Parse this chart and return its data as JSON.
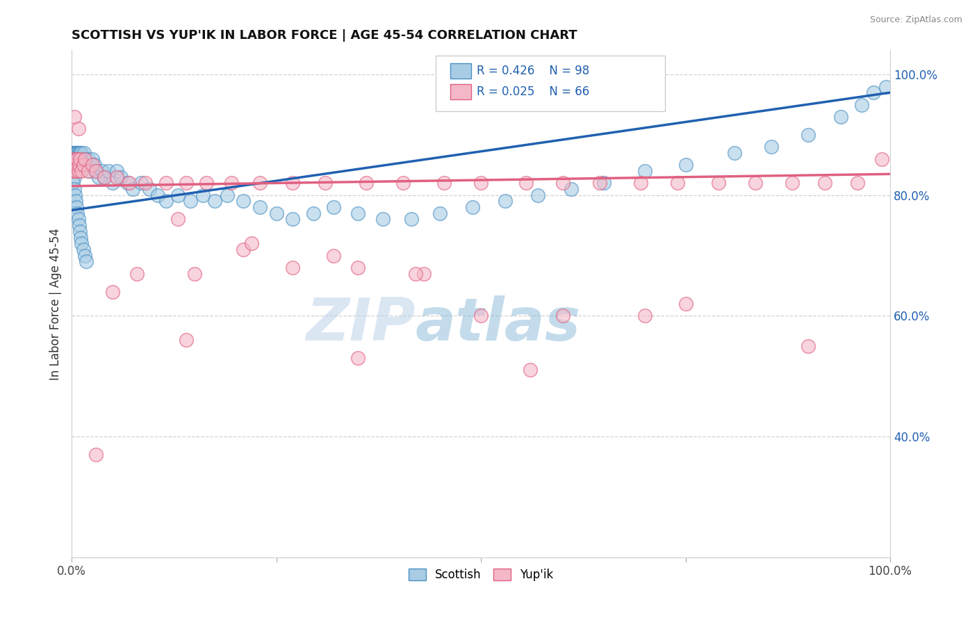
{
  "title": "SCOTTISH VS YUP'IK IN LABOR FORCE | AGE 45-54 CORRELATION CHART",
  "source": "Source: ZipAtlas.com",
  "ylabel": "In Labor Force | Age 45-54",
  "xlim": [
    0,
    1
  ],
  "ylim": [
    0.2,
    1.04
  ],
  "y_ticks_right": [
    0.4,
    0.6,
    0.8,
    1.0
  ],
  "y_tick_labels_right": [
    "40.0%",
    "60.0%",
    "80.0%",
    "100.0%"
  ],
  "watermark_zip": "ZIP",
  "watermark_atlas": "atlas",
  "legend_blue_label": "Scottish",
  "legend_pink_label": "Yup'ik",
  "blue_R": "R = 0.426",
  "blue_N": "N = 98",
  "pink_R": "R = 0.025",
  "pink_N": "N = 66",
  "blue_fill": "#a8cce4",
  "blue_edge": "#4a90c4",
  "pink_fill": "#f4b8c8",
  "pink_edge": "#e06080",
  "blue_line_color": "#2060b0",
  "pink_line_color": "#e06080",
  "background_color": "#ffffff",
  "grid_color": "#cccccc",
  "scottish_x": [
    0.001,
    0.001,
    0.001,
    0.002,
    0.002,
    0.002,
    0.002,
    0.003,
    0.003,
    0.003,
    0.003,
    0.003,
    0.004,
    0.004,
    0.004,
    0.004,
    0.005,
    0.005,
    0.005,
    0.006,
    0.006,
    0.006,
    0.007,
    0.007,
    0.008,
    0.008,
    0.009,
    0.009,
    0.01,
    0.01,
    0.011,
    0.012,
    0.013,
    0.014,
    0.015,
    0.016,
    0.018,
    0.02,
    0.022,
    0.025,
    0.028,
    0.03,
    0.033,
    0.037,
    0.04,
    0.045,
    0.05,
    0.055,
    0.06,
    0.068,
    0.075,
    0.085,
    0.095,
    0.105,
    0.115,
    0.13,
    0.145,
    0.16,
    0.175,
    0.19,
    0.21,
    0.23,
    0.25,
    0.27,
    0.295,
    0.32,
    0.35,
    0.38,
    0.415,
    0.45,
    0.49,
    0.53,
    0.57,
    0.61,
    0.65,
    0.7,
    0.75,
    0.81,
    0.855,
    0.9,
    0.94,
    0.965,
    0.98,
    0.995,
    0.002,
    0.003,
    0.004,
    0.005,
    0.006,
    0.007,
    0.008,
    0.009,
    0.01,
    0.011,
    0.012,
    0.014,
    0.016,
    0.018
  ],
  "scottish_y": [
    0.87,
    0.86,
    0.85,
    0.87,
    0.86,
    0.85,
    0.84,
    0.87,
    0.86,
    0.85,
    0.84,
    0.83,
    0.87,
    0.86,
    0.85,
    0.84,
    0.87,
    0.86,
    0.85,
    0.87,
    0.86,
    0.85,
    0.87,
    0.86,
    0.87,
    0.86,
    0.87,
    0.86,
    0.87,
    0.86,
    0.86,
    0.87,
    0.86,
    0.85,
    0.87,
    0.86,
    0.85,
    0.86,
    0.84,
    0.86,
    0.85,
    0.84,
    0.83,
    0.84,
    0.83,
    0.84,
    0.82,
    0.84,
    0.83,
    0.82,
    0.81,
    0.82,
    0.81,
    0.8,
    0.79,
    0.8,
    0.79,
    0.8,
    0.79,
    0.8,
    0.79,
    0.78,
    0.77,
    0.76,
    0.77,
    0.78,
    0.77,
    0.76,
    0.76,
    0.77,
    0.78,
    0.79,
    0.8,
    0.81,
    0.82,
    0.84,
    0.85,
    0.87,
    0.88,
    0.9,
    0.93,
    0.95,
    0.97,
    0.98,
    0.82,
    0.81,
    0.8,
    0.79,
    0.78,
    0.77,
    0.76,
    0.75,
    0.74,
    0.73,
    0.72,
    0.71,
    0.7,
    0.69
  ],
  "yupik_x": [
    0.001,
    0.002,
    0.003,
    0.003,
    0.004,
    0.005,
    0.005,
    0.006,
    0.007,
    0.008,
    0.009,
    0.01,
    0.012,
    0.014,
    0.016,
    0.02,
    0.025,
    0.03,
    0.04,
    0.055,
    0.07,
    0.09,
    0.115,
    0.14,
    0.165,
    0.195,
    0.23,
    0.27,
    0.31,
    0.36,
    0.405,
    0.455,
    0.5,
    0.555,
    0.6,
    0.645,
    0.695,
    0.74,
    0.79,
    0.835,
    0.88,
    0.92,
    0.96,
    0.99,
    0.05,
    0.08,
    0.15,
    0.21,
    0.27,
    0.35,
    0.43,
    0.5,
    0.6,
    0.7,
    0.13,
    0.22,
    0.32,
    0.42,
    0.14,
    0.35,
    0.56,
    0.75,
    0.9,
    0.003,
    0.008,
    0.03
  ],
  "yupik_y": [
    0.84,
    0.85,
    0.86,
    0.84,
    0.85,
    0.86,
    0.84,
    0.85,
    0.86,
    0.84,
    0.85,
    0.86,
    0.84,
    0.85,
    0.86,
    0.84,
    0.85,
    0.84,
    0.83,
    0.83,
    0.82,
    0.82,
    0.82,
    0.82,
    0.82,
    0.82,
    0.82,
    0.82,
    0.82,
    0.82,
    0.82,
    0.82,
    0.82,
    0.82,
    0.82,
    0.82,
    0.82,
    0.82,
    0.82,
    0.82,
    0.82,
    0.82,
    0.82,
    0.86,
    0.64,
    0.67,
    0.67,
    0.71,
    0.68,
    0.68,
    0.67,
    0.6,
    0.6,
    0.6,
    0.76,
    0.72,
    0.7,
    0.67,
    0.56,
    0.53,
    0.51,
    0.62,
    0.55,
    0.93,
    0.91,
    0.37
  ],
  "blue_trend_x": [
    0.0,
    1.0
  ],
  "blue_trend_y": [
    0.775,
    0.97
  ],
  "pink_trend_x": [
    0.0,
    1.0
  ],
  "pink_trend_y": [
    0.815,
    0.835
  ]
}
